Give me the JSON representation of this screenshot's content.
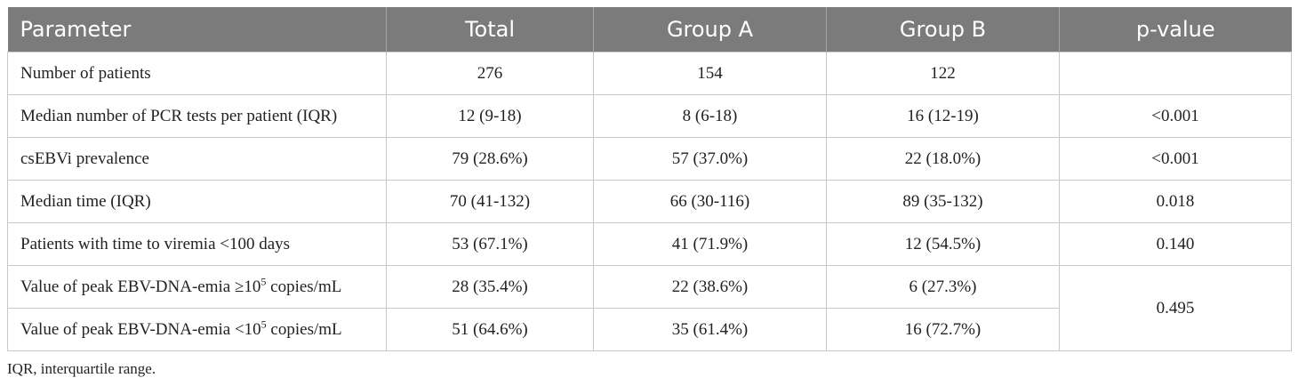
{
  "table": {
    "headers": [
      "Parameter",
      "Total",
      "Group A",
      "Group B",
      "p-value"
    ],
    "rows": [
      {
        "parameter": "Number of patients",
        "total": "276",
        "group_a": "154",
        "group_b": "122",
        "p_value": ""
      },
      {
        "parameter": "Median number of PCR tests per patient (IQR)",
        "total": "12 (9-18)",
        "group_a": "8 (6-18)",
        "group_b": "16 (12-19)",
        "p_value": "<0.001"
      },
      {
        "parameter": "csEBVi prevalence",
        "total": "79 (28.6%)",
        "group_a": "57 (37.0%)",
        "group_b": "22 (18.0%)",
        "p_value": "<0.001"
      },
      {
        "parameter": "Median time (IQR)",
        "total": "70 (41-132)",
        "group_a": "66 (30-116)",
        "group_b": "89 (35-132)",
        "p_value": "0.018"
      },
      {
        "parameter": "Patients with time to viremia <100 days",
        "total": "53 (67.1%)",
        "group_a": "41 (71.9%)",
        "group_b": "12 (54.5%)",
        "p_value": "0.140"
      },
      {
        "parameter_pre": "Value of peak EBV-DNA-emia ≥10",
        "parameter_exp": "5",
        "parameter_post": " copies/mL",
        "total": "28 (35.4%)",
        "group_a": "22 (38.6%)",
        "group_b": "6 (27.3%)",
        "p_value": "0.495"
      },
      {
        "parameter_pre": "Value of peak EBV-DNA-emia <10",
        "parameter_exp": "5",
        "parameter_post": " copies/mL",
        "total": "51 (64.6%)",
        "group_a": "35 (61.4%)",
        "group_b": "16 (72.7%)"
      }
    ]
  },
  "footnote": "IQR, interquartile range.",
  "colors": {
    "header_bg": "#7b7b7b",
    "header_text": "#ffffff",
    "border": "#c8c8c8"
  }
}
